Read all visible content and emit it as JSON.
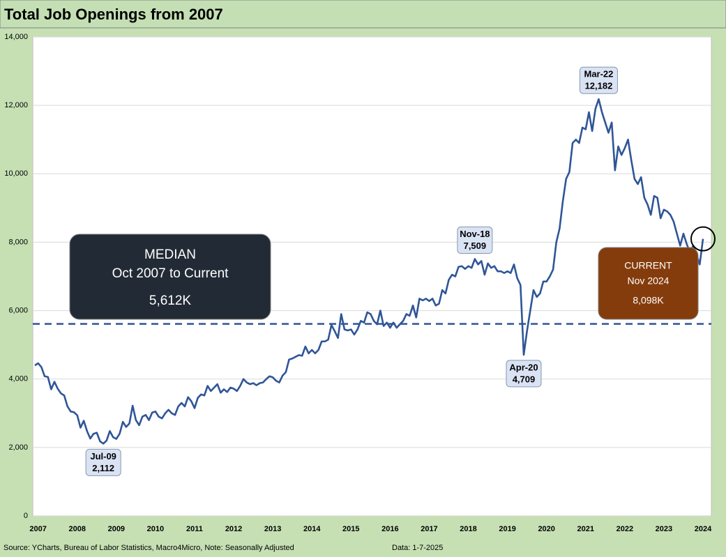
{
  "chart_data": {
    "type": "line",
    "title": "Total Job Openings from 2007",
    "categories": [
      null,
      "2007",
      null,
      null,
      null,
      null,
      null,
      null,
      null,
      null,
      null,
      null,
      null,
      "2008",
      null,
      null,
      null,
      null,
      null,
      null,
      null,
      null,
      null,
      null,
      null,
      "2009",
      null,
      null,
      null,
      null,
      null,
      null,
      null,
      null,
      null,
      null,
      null,
      "2010",
      null,
      null,
      null,
      null,
      null,
      null,
      null,
      null,
      null,
      null,
      null,
      "2011",
      null,
      null,
      null,
      null,
      null,
      null,
      null,
      null,
      null,
      null,
      null,
      "2012",
      null,
      null,
      null,
      null,
      null,
      null,
      null,
      null,
      null,
      null,
      null,
      "2013",
      null,
      null,
      null,
      null,
      null,
      null,
      null,
      null,
      null,
      null,
      null,
      "2014",
      null,
      null,
      null,
      null,
      null,
      null,
      null,
      null,
      null,
      null,
      null,
      "2015",
      null,
      null,
      null,
      null,
      null,
      null,
      null,
      null,
      null,
      null,
      null,
      "2016",
      null,
      null,
      null,
      null,
      null,
      null,
      null,
      null,
      null,
      null,
      null,
      "2017",
      null,
      null,
      null,
      null,
      null,
      null,
      null,
      null,
      null,
      null,
      null,
      "2018",
      null,
      null,
      null,
      null,
      null,
      null,
      null,
      null,
      null,
      null,
      null,
      "2019",
      null,
      null,
      null,
      null,
      null,
      null,
      null,
      null,
      null,
      null,
      null,
      "2020",
      null,
      null,
      null,
      null,
      null,
      null,
      null,
      null,
      null,
      null,
      null,
      "2021",
      null,
      null,
      null,
      null,
      null,
      null,
      null,
      null,
      null,
      null,
      null,
      "2022",
      null,
      null,
      null,
      null,
      null,
      null,
      null,
      null,
      null,
      null,
      null,
      "2023",
      null,
      null,
      null,
      null,
      null,
      null,
      null,
      null,
      null,
      null,
      null,
      "2024"
    ],
    "values": [
      4400,
      4460,
      4350,
      4080,
      4060,
      3700,
      3920,
      3720,
      3580,
      3520,
      3200,
      3050,
      3030,
      2940,
      2580,
      2780,
      2480,
      2260,
      2400,
      2430,
      2180,
      2112,
      2200,
      2480,
      2300,
      2250,
      2400,
      2750,
      2600,
      2700,
      3220,
      2800,
      2650,
      2900,
      2950,
      2800,
      3020,
      3050,
      2900,
      2850,
      3000,
      3100,
      3000,
      2950,
      3200,
      3300,
      3200,
      3470,
      3350,
      3150,
      3450,
      3550,
      3520,
      3800,
      3650,
      3750,
      3850,
      3600,
      3700,
      3620,
      3750,
      3720,
      3650,
      3800,
      4000,
      3900,
      3850,
      3880,
      3820,
      3880,
      3900,
      4000,
      4080,
      4050,
      3950,
      3900,
      4100,
      4200,
      4570,
      4600,
      4650,
      4700,
      4680,
      4950,
      4750,
      4850,
      4750,
      4850,
      5100,
      5100,
      5150,
      5580,
      5400,
      5200,
      5900,
      5450,
      5420,
      5450,
      5300,
      5450,
      5700,
      5650,
      5950,
      5900,
      5700,
      5600,
      6000,
      5550,
      5650,
      5500,
      5650,
      5500,
      5600,
      5700,
      5900,
      5850,
      6150,
      5800,
      6350,
      6300,
      6350,
      6280,
      6350,
      6150,
      6200,
      6600,
      6500,
      6900,
      7050,
      7000,
      7280,
      7300,
      7220,
      7300,
      7250,
      7509,
      7350,
      7450,
      7050,
      7380,
      7250,
      7300,
      7150,
      7150,
      7100,
      7150,
      7100,
      7350,
      6950,
      6750,
      4709,
      5400,
      6000,
      6600,
      6400,
      6500,
      6850,
      6850,
      7000,
      7200,
      8000,
      8400,
      9200,
      9850,
      10050,
      10900,
      11000,
      10900,
      11350,
      11300,
      11800,
      11250,
      11900,
      12182,
      11800,
      11500,
      11200,
      11500,
      10100,
      10800,
      10550,
      10750,
      11000,
      10400,
      9850,
      9700,
      9900,
      9300,
      9100,
      8800,
      9350,
      9300,
      8700,
      8950,
      8900,
      8800,
      8600,
      8250,
      7900,
      8250,
      7950,
      7700,
      7900,
      7650,
      7350,
      8098
    ],
    "value_labels": [
      null,
      null,
      null,
      null,
      null,
      null,
      null,
      null,
      null,
      null,
      null,
      null,
      null,
      null,
      null,
      null,
      null,
      null,
      null,
      null,
      null,
      "2,112",
      null,
      null,
      null,
      null,
      null,
      null,
      null,
      null,
      null,
      null,
      null,
      null,
      null,
      null,
      null,
      null,
      null,
      null,
      null,
      null,
      null,
      null,
      null,
      null,
      null,
      null,
      null,
      null,
      null,
      null,
      null,
      null,
      null,
      null,
      null,
      null,
      null,
      null,
      null,
      null,
      null,
      null,
      null,
      null,
      null,
      null,
      null,
      null,
      null,
      null,
      null,
      null,
      null,
      null,
      null,
      null,
      null,
      null,
      null,
      null,
      null,
      null,
      null,
      null,
      null,
      null,
      null,
      null,
      null,
      null,
      null,
      null,
      null,
      null,
      null,
      null,
      null,
      null,
      null,
      null,
      null,
      null,
      null,
      null,
      null,
      null,
      null,
      null,
      null,
      null,
      null,
      null,
      null,
      null,
      null,
      null,
      null,
      null,
      null,
      null,
      null,
      null,
      null,
      null,
      null,
      null,
      null,
      null,
      null,
      null,
      null,
      null,
      null,
      "7,509",
      null,
      null,
      null,
      null,
      null,
      null,
      null,
      null,
      null,
      null,
      null,
      null,
      null,
      null,
      "4,709",
      null,
      null,
      null,
      null,
      null,
      null,
      null,
      null,
      null,
      null,
      null,
      null,
      null,
      null,
      null,
      null,
      null,
      null,
      null,
      null,
      null,
      null,
      "12,182",
      null,
      null,
      null,
      null,
      null,
      null,
      null,
      null,
      null,
      null,
      null,
      null,
      null,
      null,
      null,
      null,
      null,
      null,
      null,
      null,
      null,
      null,
      null,
      null,
      null,
      null,
      null,
      null,
      null,
      null,
      null,
      null
    ],
    "point_labels": [
      null,
      null,
      null,
      null,
      null,
      null,
      null,
      null,
      null,
      null,
      null,
      null,
      null,
      null,
      null,
      null,
      null,
      null,
      null,
      null,
      null,
      "Jul-09",
      null,
      null,
      null,
      null,
      null,
      null,
      null,
      null,
      null,
      null,
      null,
      null,
      null,
      null,
      null,
      null,
      null,
      null,
      null,
      null,
      null,
      null,
      null,
      null,
      null,
      null,
      null,
      null,
      null,
      null,
      null,
      null,
      null,
      null,
      null,
      null,
      null,
      null,
      null,
      null,
      null,
      null,
      null,
      null,
      null,
      null,
      null,
      null,
      null,
      null,
      null,
      null,
      null,
      null,
      null,
      null,
      null,
      null,
      null,
      null,
      null,
      null,
      null,
      null,
      null,
      null,
      null,
      null,
      null,
      null,
      null,
      null,
      null,
      null,
      null,
      null,
      null,
      null,
      null,
      null,
      null,
      null,
      null,
      null,
      null,
      null,
      null,
      null,
      null,
      null,
      null,
      null,
      null,
      null,
      null,
      null,
      null,
      null,
      null,
      null,
      null,
      null,
      null,
      null,
      null,
      null,
      null,
      null,
      null,
      null,
      null,
      null,
      null,
      "Nov-18",
      null,
      null,
      null,
      null,
      null,
      null,
      null,
      null,
      null,
      null,
      null,
      null,
      null,
      null,
      "Apr-20",
      null,
      null,
      null,
      null,
      null,
      null,
      null,
      null,
      null,
      null,
      null,
      null,
      null,
      null,
      null,
      null,
      null,
      null,
      null,
      null,
      null,
      null,
      "Mar-22",
      null,
      null,
      null,
      null,
      null,
      null,
      null,
      null,
      null,
      null,
      null,
      null,
      null,
      null,
      null,
      null,
      null,
      null,
      null,
      null,
      null,
      null,
      null,
      null,
      null,
      null,
      null,
      null,
      null,
      null,
      null,
      null
    ],
    "color": "#2f5597",
    "ylim": [
      0,
      14000
    ],
    "yticks": [
      0,
      {
        "value": 2000,
        "label": "2,000"
      },
      {
        "value": 4000,
        "label": "4,000"
      },
      {
        "value": 6000,
        "label": "6,000"
      },
      {
        "value": 8000,
        "label": "8,000"
      },
      {
        "value": 10000,
        "label": "10,000"
      },
      {
        "value": 12000,
        "label": "12,000"
      },
      {
        "value": 14000,
        "label": "14,000"
      }
    ],
    "grid": true,
    "median": {
      "value": 5612,
      "title": "MEDIAN",
      "period": "Oct 2007 to Current",
      "value_label": "5,612K"
    },
    "current": {
      "title": "CURRENT",
      "period": "Nov 2024",
      "value_label": "8,098K"
    },
    "source": "Source: YCharts, Bureau of Labor Statistics, Macro4Micro, Note: Seasonally Adjusted",
    "date_note": "Data: 1-7-2025"
  }
}
